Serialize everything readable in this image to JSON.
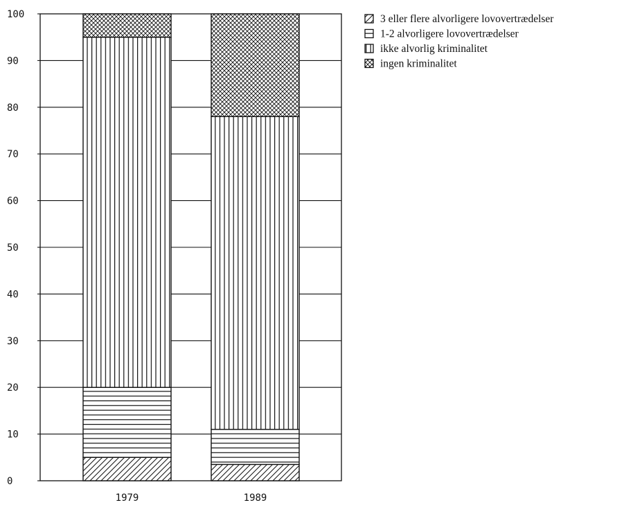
{
  "chart_data": {
    "type": "bar",
    "stacked": true,
    "categories": [
      "1979",
      "1989"
    ],
    "series": [
      {
        "name": "3 eller flere alvorligere lovovertrædelser",
        "pattern": "diagonal",
        "values": [
          5,
          3.5
        ]
      },
      {
        "name": "1-2 alvorligere lovovertrædelser",
        "pattern": "horizontal",
        "values": [
          15,
          7.5
        ]
      },
      {
        "name": "ikke alvorlig kriminalitet",
        "pattern": "vertical",
        "values": [
          75,
          67
        ]
      },
      {
        "name": "ingen kriminalitet",
        "pattern": "crosshatch",
        "values": [
          5,
          22
        ]
      }
    ],
    "y_ticks": [
      "0",
      "10",
      "20",
      "30",
      "40",
      "50",
      "60",
      "70",
      "80",
      "90",
      "100"
    ],
    "ylim": [
      0,
      100
    ],
    "grid": true,
    "legend_position": "top-right",
    "colors": {
      "ink": "#111111",
      "background": "#ffffff"
    }
  }
}
